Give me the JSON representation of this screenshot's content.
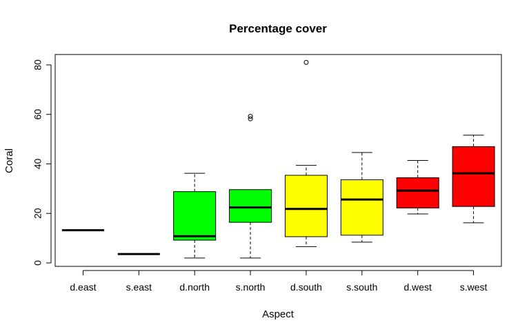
{
  "chart_data": {
    "type": "boxplot",
    "title": "Percentage cover",
    "xlabel": "Aspect",
    "ylabel": "Coral",
    "ylim": [
      0,
      80
    ],
    "yticks": [
      0,
      20,
      40,
      60,
      80
    ],
    "grid": false,
    "categories": [
      "d.east",
      "s.east",
      "d.north",
      "s.north",
      "d.south",
      "s.south",
      "d.west",
      "s.west"
    ],
    "boxes": [
      {
        "category": "d.east",
        "min": 13.2,
        "q1": 13.2,
        "median": 13.2,
        "q3": 13.2,
        "max": 13.2,
        "outliers": [],
        "color": "#ffffff"
      },
      {
        "category": "s.east",
        "min": 3.6,
        "q1": 3.6,
        "median": 3.6,
        "q3": 3.6,
        "max": 3.6,
        "outliers": [],
        "color": "#ffffff"
      },
      {
        "category": "d.north",
        "min": 2.0,
        "q1": 9.2,
        "median": 10.8,
        "q3": 28.8,
        "max": 36.2,
        "outliers": [],
        "color": "#00ff00"
      },
      {
        "category": "s.north",
        "min": 2.0,
        "q1": 16.4,
        "median": 22.4,
        "q3": 29.6,
        "max": 29.6,
        "outliers": [
          58.2,
          59.2
        ],
        "color": "#00ff00"
      },
      {
        "category": "d.south",
        "min": 6.6,
        "q1": 10.6,
        "median": 21.8,
        "q3": 35.4,
        "max": 39.4,
        "outliers": [
          81.0
        ],
        "color": "#ffff00"
      },
      {
        "category": "s.south",
        "min": 8.4,
        "q1": 11.2,
        "median": 25.6,
        "q3": 33.6,
        "max": 44.6,
        "outliers": [],
        "color": "#ffff00"
      },
      {
        "category": "d.west",
        "min": 19.8,
        "q1": 22.2,
        "median": 29.2,
        "q3": 34.4,
        "max": 41.4,
        "outliers": [],
        "color": "#ff0000"
      },
      {
        "category": "s.west",
        "min": 16.2,
        "q1": 22.8,
        "median": 36.2,
        "q3": 47.0,
        "max": 51.6,
        "outliers": [],
        "color": "#ff0000"
      }
    ]
  }
}
